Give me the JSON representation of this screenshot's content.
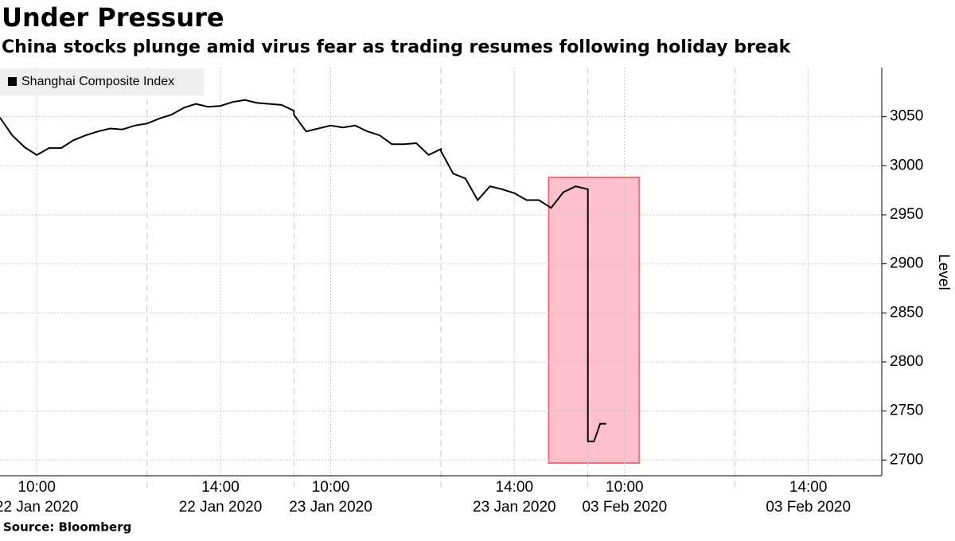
{
  "chart_data": {
    "type": "line",
    "title": "Under Pressure",
    "subtitle": "China stocks plunge amid virus fear as trading resumes following holiday break",
    "source": "Source: Bloomberg",
    "y_label": "Level",
    "x": [
      "2020-01-22 09:30",
      "2020-01-22 09:40",
      "2020-01-22 09:50",
      "2020-01-22 10:00",
      "2020-01-22 10:10",
      "2020-01-22 10:20",
      "2020-01-22 10:30",
      "2020-01-22 10:40",
      "2020-01-22 10:50",
      "2020-01-22 11:00",
      "2020-01-22 11:10",
      "2020-01-22 11:20",
      "2020-01-22 13:00",
      "2020-01-22 13:10",
      "2020-01-22 13:20",
      "2020-01-22 13:30",
      "2020-01-22 13:40",
      "2020-01-22 13:50",
      "2020-01-22 14:00",
      "2020-01-22 14:10",
      "2020-01-22 14:20",
      "2020-01-22 14:30",
      "2020-01-22 14:40",
      "2020-01-22 14:50",
      "2020-01-22 15:00",
      "2020-01-23 09:30",
      "2020-01-23 09:40",
      "2020-01-23 09:50",
      "2020-01-23 10:00",
      "2020-01-23 10:10",
      "2020-01-23 10:20",
      "2020-01-23 10:30",
      "2020-01-23 10:40",
      "2020-01-23 10:50",
      "2020-01-23 11:00",
      "2020-01-23 11:10",
      "2020-01-23 11:20",
      "2020-01-23 11:30",
      "2020-01-23 13:00",
      "2020-01-23 13:10",
      "2020-01-23 13:20",
      "2020-01-23 13:30",
      "2020-01-23 13:40",
      "2020-01-23 13:50",
      "2020-01-23 14:00",
      "2020-01-23 14:10",
      "2020-01-23 14:20",
      "2020-01-23 14:30",
      "2020-01-23 14:40",
      "2020-01-23 14:50",
      "2020-01-23 15:00",
      "2020-02-03 09:30",
      "2020-02-03 09:35",
      "2020-02-03 09:40",
      "2020-02-03 09:45"
    ],
    "series": [
      {
        "name": "Shanghai Composite Index",
        "color": "#000000",
        "values": [
          3049,
          3031,
          3019,
          3011,
          3018,
          3018,
          3026,
          3031,
          3035,
          3038,
          3037,
          3041,
          3043,
          3048,
          3052,
          3059,
          3063,
          3060,
          3061,
          3065,
          3067,
          3064,
          3063,
          3062,
          3056,
          3052,
          3035,
          3038,
          3041,
          3039,
          3041,
          3035,
          3031,
          3022,
          3022,
          3023,
          3011,
          3017,
          3015,
          2992,
          2987,
          2965,
          2979,
          2976,
          2972,
          2965,
          2965,
          2957,
          2973,
          2979,
          2976,
          2719,
          2719,
          2737,
          2737
        ]
      }
    ],
    "highlight": {
      "x": [
        "2020-01-23 14:28",
        "2020-02-03 10:12"
      ],
      "y": [
        2697,
        2988
      ],
      "color": "#ffc0cb"
    },
    "ylim": [
      2684,
      3100
    ],
    "yticks": [
      2700,
      2750,
      2800,
      2850,
      2900,
      2950,
      3000,
      3050
    ],
    "xticks": [
      {
        "value": "2020-01-22 10:00",
        "label": "10:00",
        "date": "22 Jan 2020"
      },
      {
        "value": "2020-01-22 14:00",
        "label": "14:00",
        "date": "22 Jan 2020"
      },
      {
        "value": "2020-01-23 10:00",
        "label": "10:00",
        "date": "23 Jan 2020"
      },
      {
        "value": "2020-01-23 14:00",
        "label": "14:00",
        "date": "23 Jan 2020"
      },
      {
        "value": "2020-02-03 10:00",
        "label": "10:00",
        "date": "03 Feb 2020"
      },
      {
        "value": "2020-02-03 14:00",
        "label": "14:00",
        "date": "03 Feb 2020"
      }
    ],
    "grid": true
  }
}
